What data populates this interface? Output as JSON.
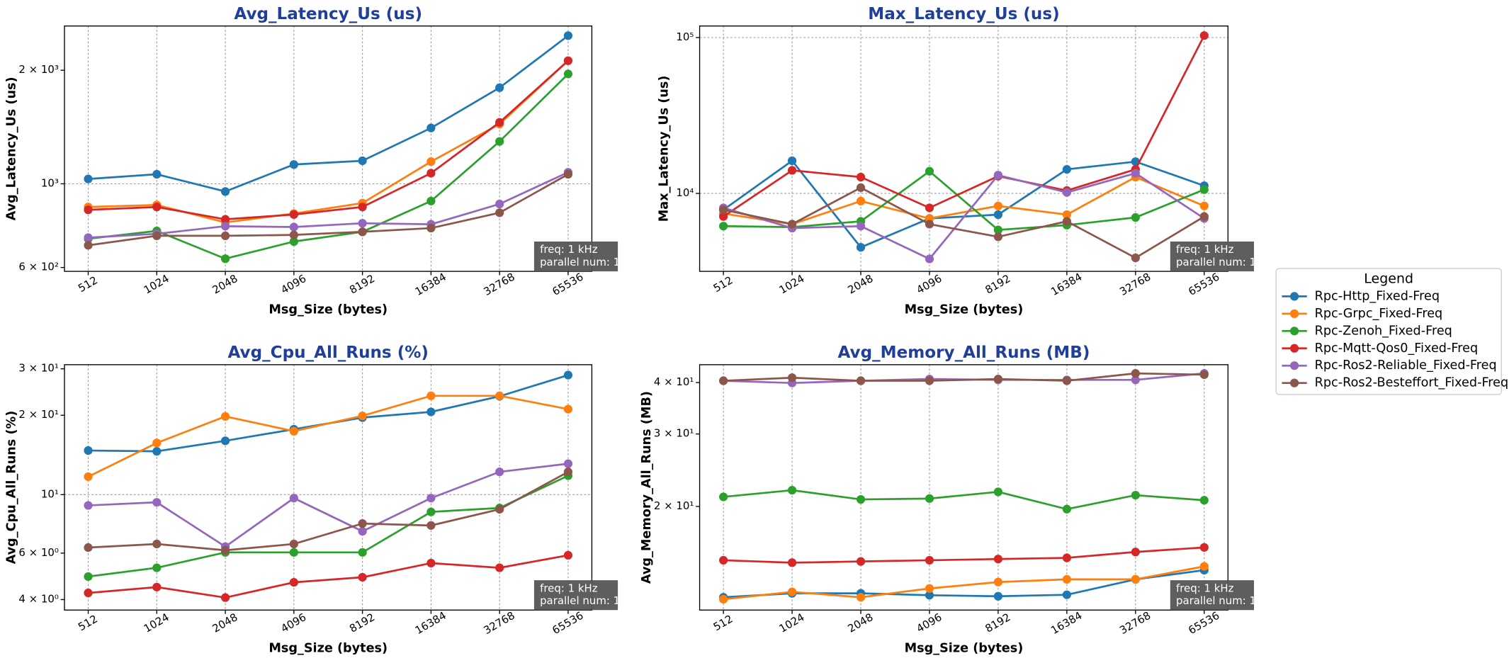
{
  "legend": {
    "title": "Legend"
  },
  "chart_data": [
    {
      "type": "line",
      "title": "Avg_Latency_Us  (us)",
      "x_label": "Msg_Size (bytes)",
      "y_label": "Avg_Latency_Us (us)",
      "categories": [
        "512",
        "1024",
        "2048",
        "4096",
        "8192",
        "16384",
        "32768",
        "65536"
      ],
      "log_y": true,
      "grid": true,
      "ylim": [
        586,
        2620
      ],
      "yticks": [
        {
          "value": 600,
          "label": "6 × 10²"
        },
        {
          "value": 1000,
          "label": "10³"
        },
        {
          "value": 2000,
          "label": "2 × 10³"
        }
      ],
      "annotation": [
        "freq: 1 kHz",
        "parallel num: 1"
      ],
      "series": [
        {
          "name": "Rpc-Http_Fixed-Freq",
          "color": "#1f77b4",
          "values": [
            1030,
            1060,
            954,
            1125,
            1151,
            1406,
            1798,
            2470
          ]
        },
        {
          "name": "Rpc-Grpc_Fixed-Freq",
          "color": "#ff7f0e",
          "values": [
            868,
            879,
            790,
            834,
            889,
            1145,
            1440,
            2120
          ]
        },
        {
          "name": "Rpc-Zenoh_Fixed-Freq",
          "color": "#2ca02c",
          "values": [
            715,
            750,
            633,
            703,
            746,
            900,
            1295,
            1955
          ]
        },
        {
          "name": "Rpc-Mqtt-Qos0_Fixed-Freq",
          "color": "#d62728",
          "values": [
            853,
            868,
            805,
            829,
            868,
            1067,
            1455,
            2120
          ]
        },
        {
          "name": "Rpc-Ros2-Reliable_Fixed-Freq",
          "color": "#9467bd",
          "values": [
            720,
            737,
            772,
            768,
            786,
            781,
            884,
            1073
          ]
        },
        {
          "name": "Rpc-Ros2-Besteffort_Fixed-Freq",
          "color": "#8c564b",
          "values": [
            687,
            728,
            728,
            732,
            746,
            763,
            838,
            1060
          ]
        }
      ]
    },
    {
      "type": "line",
      "title": "Max_Latency_Us  (us)",
      "x_label": "Msg_Size (bytes)",
      "y_label": "Max_Latency_Us (us)",
      "categories": [
        "512",
        "1024",
        "2048",
        "4096",
        "8192",
        "16384",
        "32768",
        "65536"
      ],
      "log_y": true,
      "grid": true,
      "ylim": [
        3162,
        118600
      ],
      "yticks": [
        {
          "value": 10000,
          "label": "10⁴"
        },
        {
          "value": 100000,
          "label": "10⁵"
        }
      ],
      "annotation": [
        "freq: 1 kHz",
        "parallel num: 1"
      ],
      "series": [
        {
          "name": "Rpc-Http_Fixed-Freq",
          "color": "#1f77b4",
          "values": [
            7850,
            16200,
            4510,
            6910,
            7310,
            14270,
            15990,
            11200
          ]
        },
        {
          "name": "Rpc-Grpc_Fixed-Freq",
          "color": "#ff7f0e",
          "values": [
            7420,
            6350,
            8930,
            6910,
            8310,
            7310,
            12730,
            8310
          ]
        },
        {
          "name": "Rpc-Zenoh_Fixed-Freq",
          "color": "#2ca02c",
          "values": [
            6170,
            6080,
            6620,
            13870,
            5830,
            6260,
            7010,
            10580
          ]
        },
        {
          "name": "Rpc-Mqtt-Qos0_Fixed-Freq",
          "color": "#d62728",
          "values": [
            7110,
            14060,
            12730,
            8080,
            12910,
            10430,
            14270,
            103000
          ]
        },
        {
          "name": "Rpc-Ros2-Reliable_Fixed-Freq",
          "color": "#9467bd",
          "values": [
            8080,
            5990,
            6170,
            3800,
            13100,
            10140,
            13470,
            6910
          ]
        },
        {
          "name": "Rpc-Ros2-Besteffort_Fixed-Freq",
          "color": "#8c564b",
          "values": [
            7850,
            6350,
            10890,
            6350,
            5270,
            6620,
            3860,
            7110
          ]
        }
      ]
    },
    {
      "type": "line",
      "title": "Avg_Cpu_All_Runs  (%)",
      "x_label": "Msg_Size (bytes)",
      "y_label": "Avg_Cpu_All_Runs (%)",
      "categories": [
        "512",
        "1024",
        "2048",
        "4096",
        "8192",
        "16384",
        "32768",
        "65536"
      ],
      "log_y": true,
      "grid": true,
      "ylim": [
        3.65,
        31.1
      ],
      "yticks": [
        {
          "value": 4,
          "label": "4 × 10⁰"
        },
        {
          "value": 6,
          "label": "6 × 10⁰"
        },
        {
          "value": 10,
          "label": "10¹"
        },
        {
          "value": 20,
          "label": "2 × 10¹"
        },
        {
          "value": 30,
          "label": "3 × 10¹"
        }
      ],
      "annotation": [
        "freq: 1 kHz",
        "parallel num: 1"
      ],
      "series": [
        {
          "name": "Rpc-Http_Fixed-Freq",
          "color": "#1f77b4",
          "values": [
            14.7,
            14.6,
            16.0,
            17.7,
            19.6,
            20.6,
            23.6,
            28.4
          ]
        },
        {
          "name": "Rpc-Grpc_Fixed-Freq",
          "color": "#ff7f0e",
          "values": [
            11.7,
            15.7,
            19.8,
            17.4,
            19.9,
            23.7,
            23.7,
            21.1
          ]
        },
        {
          "name": "Rpc-Zenoh_Fixed-Freq",
          "color": "#2ca02c",
          "values": [
            4.89,
            5.28,
            6.04,
            6.04,
            6.04,
            8.6,
            8.9,
            11.8
          ]
        },
        {
          "name": "Rpc-Mqtt-Qos0_Fixed-Freq",
          "color": "#d62728",
          "values": [
            4.24,
            4.46,
            4.07,
            4.65,
            4.86,
            5.5,
            5.28,
            5.89
          ]
        },
        {
          "name": "Rpc-Ros2-Reliable_Fixed-Freq",
          "color": "#9467bd",
          "values": [
            9.1,
            9.35,
            6.35,
            9.7,
            7.26,
            9.7,
            12.2,
            13.1
          ]
        },
        {
          "name": "Rpc-Ros2-Besteffort_Fixed-Freq",
          "color": "#8c564b",
          "values": [
            6.3,
            6.5,
            6.15,
            6.5,
            7.77,
            7.64,
            8.8,
            12.2
          ]
        }
      ]
    },
    {
      "type": "line",
      "title": "Avg_Memory_All_Runs  (MB)",
      "x_label": "Msg_Size (bytes)",
      "y_label": "Avg_Memory_All_Runs (MB)",
      "categories": [
        "512",
        "1024",
        "2048",
        "4096",
        "8192",
        "16384",
        "32768",
        "65536"
      ],
      "log_y": true,
      "grid": true,
      "ylim": [
        11.2,
        44.2
      ],
      "yticks": [
        {
          "value": 20,
          "label": "2 × 10¹"
        },
        {
          "value": 30,
          "label": "3 × 10¹"
        },
        {
          "value": 40,
          "label": "4 × 10¹"
        }
      ],
      "annotation": [
        "freq: 1 kHz",
        "parallel num: 1"
      ],
      "series": [
        {
          "name": "Rpc-Http_Fixed-Freq",
          "color": "#1f77b4",
          "values": [
            12.03,
            12.3,
            12.3,
            12.17,
            12.1,
            12.2,
            13.3,
            14.0
          ]
        },
        {
          "name": "Rpc-Grpc_Fixed-Freq",
          "color": "#ff7f0e",
          "values": [
            11.9,
            12.4,
            12.03,
            12.64,
            13.1,
            13.3,
            13.3,
            14.3
          ]
        },
        {
          "name": "Rpc-Zenoh_Fixed-Freq",
          "color": "#2ca02c",
          "values": [
            21.1,
            21.9,
            20.8,
            20.9,
            21.7,
            19.7,
            21.3,
            20.7
          ]
        },
        {
          "name": "Rpc-Mqtt-Qos0_Fixed-Freq",
          "color": "#d62728",
          "values": [
            14.8,
            14.6,
            14.7,
            14.8,
            14.9,
            15.0,
            15.5,
            15.9
          ]
        },
        {
          "name": "Rpc-Ros2-Reliable_Fixed-Freq",
          "color": "#9467bd",
          "values": [
            40.4,
            39.9,
            40.4,
            40.8,
            40.6,
            40.6,
            40.6,
            42.1
          ]
        },
        {
          "name": "Rpc-Ros2-Besteffort_Fixed-Freq",
          "color": "#8c564b",
          "values": [
            40.4,
            41.1,
            40.4,
            40.4,
            40.8,
            40.4,
            42.1,
            41.8
          ]
        }
      ]
    }
  ]
}
